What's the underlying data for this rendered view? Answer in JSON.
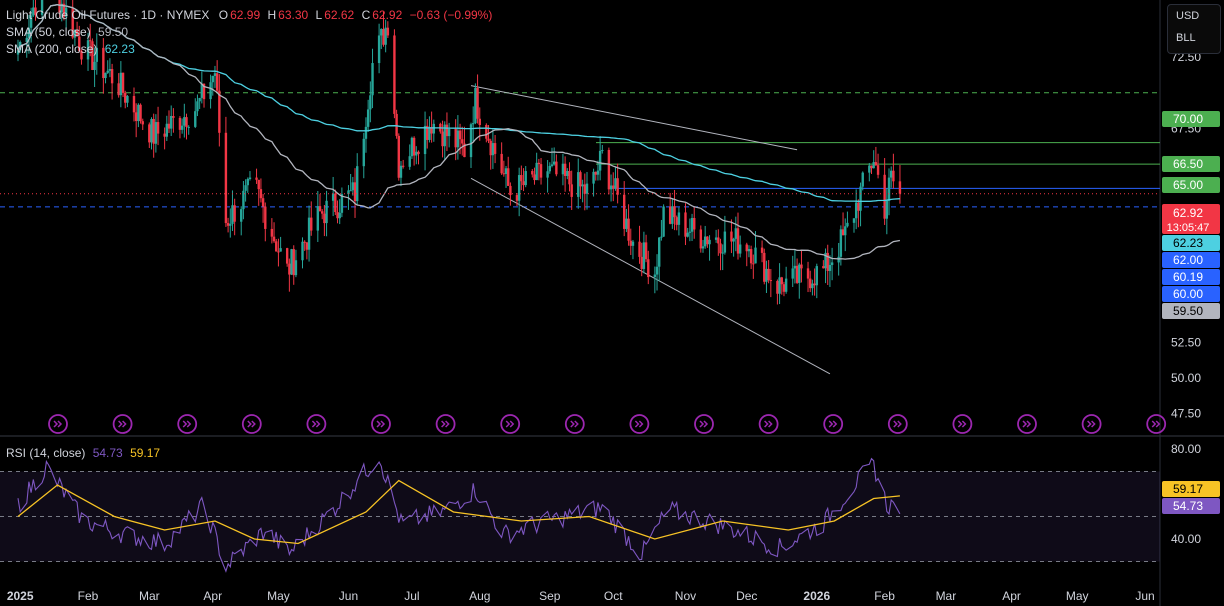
{
  "header": {
    "title": "Light Crude Oil Futures · 1D · NYMEX",
    "o_label": "O",
    "o_value": "62.99",
    "h_label": "H",
    "h_value": "63.30",
    "l_label": "L",
    "l_value": "62.62",
    "c_label": "C",
    "c_value": "62.92",
    "change": "−0.63 (−0.99%)",
    "sma50_label": "SMA (50, close)",
    "sma50_value": "59.50",
    "sma200_label": "SMA (200, close)",
    "sma200_value": "62.23"
  },
  "units": {
    "currency": "USD",
    "unit": "BLL"
  },
  "rsi_header": {
    "label": "RSI (14, close)",
    "rsi_value": "54.73",
    "ma_value": "59.17"
  },
  "colors": {
    "up": "#26a69a",
    "down": "#f23645",
    "sma50": "#b2b5be",
    "sma200": "#4dd0e1",
    "green_line": "#4caf50",
    "blue_line": "#2962ff",
    "rsi_line": "#7e57c2",
    "rsi_ma": "#f7c325",
    "event_icon": "#9c27b0"
  },
  "chart_data": [
    {
      "type": "candlestick",
      "title": "Light Crude Oil Futures · 1D · NYMEX",
      "x_tick_labels": [
        "2025",
        "Feb",
        "Mar",
        "Apr",
        "May",
        "Jun",
        "Jul",
        "Aug",
        "Sep",
        "Oct",
        "Nov",
        "Dec",
        "2026",
        "Feb",
        "Mar",
        "Apr",
        "May",
        "Jun"
      ],
      "y_tick_labels": [
        "72.50",
        "67.50",
        "52.50",
        "50.00",
        "47.50"
      ],
      "ylim": [
        46.5,
        76.5
      ],
      "last_price": "62.92",
      "countdown": "13:05:47",
      "price_labels": [
        {
          "value": "70.00",
          "color": "#4caf50"
        },
        {
          "value": "66.50",
          "color": "#4caf50"
        },
        {
          "value": "65.00",
          "color": "#4caf50"
        },
        {
          "value": "62.23",
          "color": "#4dd0e1"
        },
        {
          "value": "62.00",
          "color": "#2962ff"
        },
        {
          "value": "60.19",
          "color": "#2962ff"
        },
        {
          "value": "60.00",
          "color": "#2962ff"
        },
        {
          "value": "59.50",
          "color": "#b2b5be"
        }
      ],
      "horizontal_levels": [
        {
          "price": 70.0,
          "style": "dashed",
          "color": "#4caf50"
        },
        {
          "price": 66.5,
          "style": "solid",
          "color": "#4caf50"
        },
        {
          "price": 65.0,
          "style": "solid",
          "color": "#4caf50"
        },
        {
          "price": 63.3,
          "style": "solid",
          "color": "#2962ff"
        },
        {
          "price": 62.0,
          "style": "dashed",
          "color": "#2962ff"
        }
      ],
      "channel_lines": [
        {
          "from": [
            "2025-07-28",
            70.5
          ],
          "to": [
            "2025-12-24",
            66.0
          ]
        },
        {
          "from": [
            "2025-07-28",
            64.0
          ],
          "to": [
            "2026-01-08",
            50.3
          ]
        }
      ],
      "close_path": [
        [
          "2025-01-02",
          73.0
        ],
        [
          "2025-01-15",
          78.5
        ],
        [
          "2025-02-01",
          73.0
        ],
        [
          "2025-02-15",
          71.0
        ],
        [
          "2025-03-05",
          67.0
        ],
        [
          "2025-03-25",
          69.0
        ],
        [
          "2025-04-02",
          71.5
        ],
        [
          "2025-04-07",
          61.0
        ],
        [
          "2025-04-20",
          63.5
        ],
        [
          "2025-05-05",
          57.5
        ],
        [
          "2025-05-20",
          61.5
        ],
        [
          "2025-06-05",
          63.0
        ],
        [
          "2025-06-13",
          72.0
        ],
        [
          "2025-06-20",
          75.0
        ],
        [
          "2025-06-25",
          65.0
        ],
        [
          "2025-07-10",
          68.0
        ],
        [
          "2025-07-25",
          66.0
        ],
        [
          "2025-07-30",
          69.5
        ],
        [
          "2025-08-15",
          63.0
        ],
        [
          "2025-09-01",
          64.5
        ],
        [
          "2025-09-20",
          63.0
        ],
        [
          "2025-09-26",
          65.5
        ],
        [
          "2025-10-10",
          59.5
        ],
        [
          "2025-10-20",
          57.5
        ],
        [
          "2025-10-24",
          61.5
        ],
        [
          "2025-11-10",
          60.0
        ],
        [
          "2025-12-01",
          59.5
        ],
        [
          "2025-12-15",
          56.5
        ],
        [
          "2026-01-05",
          57.5
        ],
        [
          "2026-01-15",
          60.0
        ],
        [
          "2026-01-28",
          65.5
        ],
        [
          "2026-02-02",
          62.0
        ],
        [
          "2026-02-05",
          64.0
        ],
        [
          "2026-02-09",
          62.92
        ]
      ],
      "series": [
        {
          "name": "SMA (50, close)",
          "last_value": 59.5
        },
        {
          "name": "SMA (200, close)",
          "last_value": 62.23
        }
      ]
    },
    {
      "type": "line",
      "title": "RSI (14, close)",
      "y_tick_labels": [
        "80.00",
        "40.00"
      ],
      "ylim": [
        20,
        84
      ],
      "band": [
        30,
        70
      ],
      "series": [
        {
          "name": "RSI",
          "last_value": 54.73
        },
        {
          "name": "RSI MA",
          "last_value": 59.17
        }
      ],
      "rsi_path": [
        [
          "2025-01-02",
          55
        ],
        [
          "2025-01-15",
          72
        ],
        [
          "2025-02-01",
          48
        ],
        [
          "2025-02-20",
          42
        ],
        [
          "2025-03-10",
          38
        ],
        [
          "2025-03-28",
          55
        ],
        [
          "2025-04-07",
          28
        ],
        [
          "2025-04-25",
          44
        ],
        [
          "2025-05-06",
          34
        ],
        [
          "2025-05-25",
          52
        ],
        [
          "2025-06-16",
          77
        ],
        [
          "2025-06-26",
          47
        ],
        [
          "2025-07-15",
          52
        ],
        [
          "2025-07-30",
          62
        ],
        [
          "2025-08-12",
          42
        ],
        [
          "2025-09-01",
          48
        ],
        [
          "2025-09-26",
          54
        ],
        [
          "2025-10-14",
          33
        ],
        [
          "2025-10-26",
          53
        ],
        [
          "2025-11-20",
          46
        ],
        [
          "2025-12-16",
          36
        ],
        [
          "2026-01-05",
          47
        ],
        [
          "2026-01-20",
          65
        ],
        [
          "2026-01-28",
          73
        ],
        [
          "2026-02-03",
          55
        ],
        [
          "2026-02-09",
          54.73
        ]
      ],
      "ma_path": [
        [
          "2025-01-02",
          50
        ],
        [
          "2025-01-20",
          64
        ],
        [
          "2025-02-15",
          50
        ],
        [
          "2025-03-10",
          44
        ],
        [
          "2025-04-02",
          48
        ],
        [
          "2025-04-20",
          40
        ],
        [
          "2025-05-10",
          38
        ],
        [
          "2025-06-10",
          52
        ],
        [
          "2025-06-25",
          66
        ],
        [
          "2025-07-20",
          52
        ],
        [
          "2025-08-20",
          48
        ],
        [
          "2025-09-20",
          50
        ],
        [
          "2025-10-20",
          40
        ],
        [
          "2025-11-20",
          48
        ],
        [
          "2025-12-20",
          44
        ],
        [
          "2026-01-10",
          48
        ],
        [
          "2026-01-28",
          58
        ],
        [
          "2026-02-09",
          59.17
        ]
      ]
    }
  ]
}
